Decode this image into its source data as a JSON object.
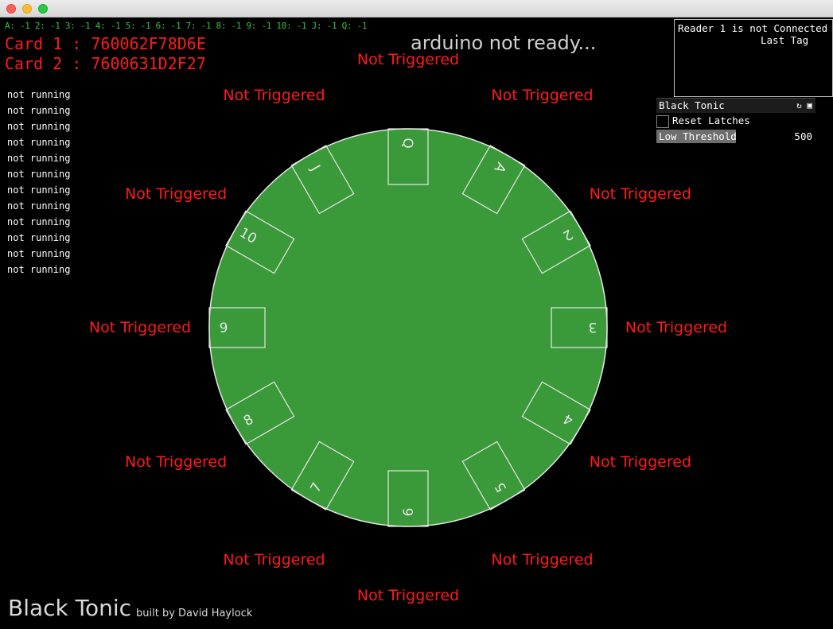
{
  "window": {
    "title": ""
  },
  "counts_line": "A: -1 2: -1 3: -1 4: -1 5: -1 6: -1 7: -1 8: -1 9: -1 10: -1 J: -1 Q: -1",
  "cards": [
    "Card 1 : 760062F78D6E",
    "Card 2 : 7600631D2F27"
  ],
  "status": "arduino not ready...",
  "run_status": [
    "not running",
    "not running",
    "not running",
    "not running",
    "not running",
    "not running",
    "not running",
    "not running",
    "not running",
    "not running",
    "not running",
    "not running"
  ],
  "reader": {
    "line1": "Reader 1 is not Connected",
    "line2": "Last Tag"
  },
  "gui": {
    "title": "Black Tonic",
    "reset_label": "Reset Latches",
    "reset_checked": false,
    "threshold_label": "Low Threshold",
    "threshold_value": "500",
    "threshold_fraction": 0.5
  },
  "table": {
    "felt_color": "#3a9a3a",
    "line_color": "#e6e6e6",
    "trigger_color": "#ff1a1a",
    "positions": [
      {
        "card": "Q",
        "trigger": "Not Triggered"
      },
      {
        "card": "A",
        "trigger": "Not Triggered"
      },
      {
        "card": "2",
        "trigger": "Not Triggered"
      },
      {
        "card": "3",
        "trigger": "Not Triggered"
      },
      {
        "card": "4",
        "trigger": "Not Triggered"
      },
      {
        "card": "5",
        "trigger": "Not Triggered"
      },
      {
        "card": "6",
        "trigger": "Not Triggered"
      },
      {
        "card": "7",
        "trigger": "Not Triggered"
      },
      {
        "card": "8",
        "trigger": "Not Triggered"
      },
      {
        "card": "9",
        "trigger": "Not Triggered"
      },
      {
        "card": "10",
        "trigger": "Not Triggered"
      },
      {
        "card": "J",
        "trigger": "Not Triggered"
      }
    ]
  },
  "footer": {
    "brand": "Black Tonic",
    "credit": "built by David Haylock"
  }
}
